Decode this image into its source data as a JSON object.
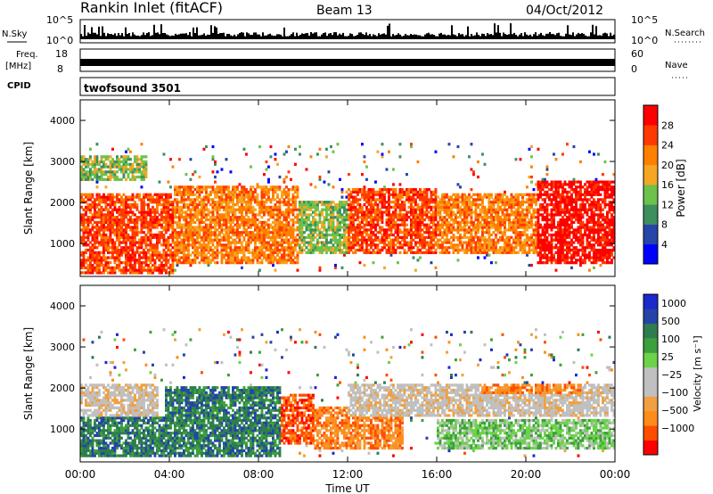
{
  "header": {
    "station": "Rankin Inlet (fitACF)",
    "beam": "Beam 13",
    "date": "04/Oct/2012"
  },
  "strips": {
    "nsky_label": "N.Sky",
    "nsky_ticks": [
      "10^5",
      "10^0"
    ],
    "nsearch_label": "N.Search",
    "nsearch_ticks": [
      "10^5",
      "10^0"
    ],
    "freq_label_1": "Freq.",
    "freq_label_2": "[MHz]",
    "freq_ticks": [
      "18",
      "8"
    ],
    "nave_label": "Nave",
    "nave_ticks": [
      "60",
      "0"
    ],
    "cpid_label": "CPID",
    "cpid_value": "twofsound 3501"
  },
  "colors": {
    "power": [
      "#0000ff",
      "#2545a8",
      "#3d8f5f",
      "#6cc24a",
      "#f5a623",
      "#ff7f00",
      "#ff3a00",
      "#ff0000"
    ],
    "velocity": [
      "#ff0000",
      "#ff4d00",
      "#ff8c1a",
      "#f0a040",
      "#c0c0c0",
      "#c0c0c0",
      "#6cd24a",
      "#3ca03c",
      "#2e7d4f",
      "#2544a8",
      "#1a2acc"
    ]
  },
  "chart_data": [
    {
      "type": "heatmap",
      "name": "power",
      "xlabel": "",
      "ylabel": "Slant Range [km]",
      "xlim": [
        0,
        24
      ],
      "ylim": [
        200,
        4500
      ],
      "yticks": [
        "1000",
        "2000",
        "3000",
        "4000"
      ],
      "xticks": [
        "00:00",
        "04:00",
        "08:00",
        "12:00",
        "16:00",
        "20:00",
        "00:00"
      ],
      "colorbar_label": "Power [dB]",
      "colorbar_ticks": [
        "4",
        "8",
        "12",
        "16",
        "20",
        "24",
        "28"
      ],
      "bands": [
        {
          "t0": 0.0,
          "t1": 4.2,
          "r0": 250,
          "r1": 2200,
          "level": 6
        },
        {
          "t0": 0.0,
          "t1": 3.0,
          "r0": 2500,
          "r1": 3100,
          "level": 3
        },
        {
          "t0": 4.2,
          "t1": 9.8,
          "r0": 500,
          "r1": 2400,
          "level": 5
        },
        {
          "t0": 9.8,
          "t1": 12.0,
          "r0": 700,
          "r1": 2000,
          "level": 3
        },
        {
          "t0": 12.0,
          "t1": 16.0,
          "r0": 700,
          "r1": 2300,
          "level": 6
        },
        {
          "t0": 16.0,
          "t1": 20.5,
          "r0": 700,
          "r1": 2200,
          "level": 5
        },
        {
          "t0": 20.5,
          "t1": 24.0,
          "r0": 500,
          "r1": 2500,
          "level": 7
        }
      ]
    },
    {
      "type": "heatmap",
      "name": "velocity",
      "xlabel": "Time UT",
      "ylabel": "Slant Range [km]",
      "xlim": [
        0,
        24
      ],
      "ylim": [
        200,
        4500
      ],
      "yticks": [
        "1000",
        "2000",
        "3000",
        "4000"
      ],
      "xticks": [
        "00:00",
        "04:00",
        "08:00",
        "12:00",
        "16:00",
        "20:00",
        "00:00"
      ],
      "colorbar_label": "Velocity [m s⁻¹]",
      "colorbar_ticks": [
        "1000",
        "500",
        "100",
        "25",
        "−25",
        "−100",
        "−500",
        "−1000"
      ],
      "bands": [
        {
          "t0": 0.0,
          "t1": 3.5,
          "r0": 1300,
          "r1": 2100,
          "level": 4
        },
        {
          "t0": 0.0,
          "t1": 3.8,
          "r0": 300,
          "r1": 1300,
          "level": 8
        },
        {
          "t0": 3.8,
          "t1": 9.0,
          "r0": 300,
          "r1": 2000,
          "level": 8
        },
        {
          "t0": 9.0,
          "t1": 10.5,
          "r0": 600,
          "r1": 1800,
          "level": 1
        },
        {
          "t0": 10.5,
          "t1": 14.5,
          "r0": 500,
          "r1": 1500,
          "level": 2
        },
        {
          "t0": 12.0,
          "t1": 24.0,
          "r0": 1300,
          "r1": 2100,
          "level": 4
        },
        {
          "t0": 16.0,
          "t1": 24.0,
          "r0": 500,
          "r1": 1200,
          "level": 6
        },
        {
          "t0": 18.0,
          "t1": 22.5,
          "r0": 1800,
          "r1": 2100,
          "level": 2
        }
      ]
    }
  ]
}
